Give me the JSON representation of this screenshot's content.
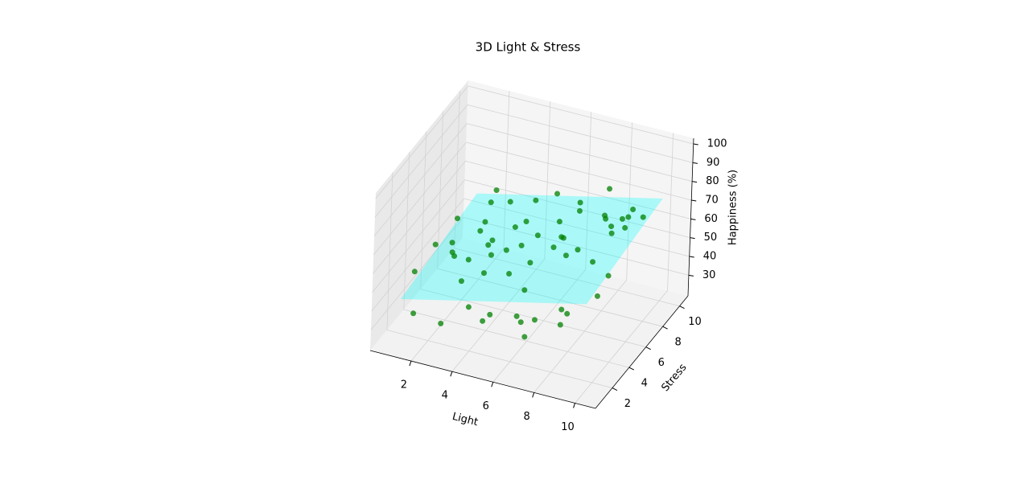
{
  "chart_data": {
    "type": "scatter3d",
    "title": "3D Light & Stress",
    "xlabel": "Light",
    "ylabel": "Stress",
    "zlabel": "Happiness (%)",
    "xlim": [
      0,
      11
    ],
    "ylim": [
      0,
      11
    ],
    "zlim": [
      19,
      103
    ],
    "xticks": [
      2,
      4,
      6,
      8,
      10
    ],
    "yticks": [
      2,
      4,
      6,
      8,
      10
    ],
    "zticks": [
      30,
      40,
      50,
      60,
      70,
      80,
      90,
      100
    ],
    "grid": true,
    "color": "green",
    "alpha": 0.75,
    "x": [
      1.2,
      2.5,
      3.1,
      4.8,
      5.5,
      6.2,
      7.9,
      8.4,
      9.6,
      1.8,
      2.9,
      3.7,
      4.1,
      5.9,
      6.8,
      7.3,
      8.8,
      9.9,
      1.5,
      2.2,
      3.4,
      4.6,
      5.2,
      6.5,
      7.6,
      8.1,
      9.3,
      1.1,
      2.7,
      3.9,
      4.4,
      5.7,
      6.9,
      7.1,
      8.6,
      9.5,
      1.9,
      2.4,
      3.2,
      4.9,
      5.3,
      6.1,
      7.8,
      8.3,
      9.8,
      1.4,
      2.1,
      3.6,
      4.2,
      5.8,
      6.6,
      7.4,
      8.9,
      9.2,
      1.7,
      3.0,
      5.0,
      6.0,
      8.0,
      9.0
    ],
    "y": [
      2.1,
      5.4,
      8.8,
      1.5,
      6.2,
      9.5,
      3.3,
      7.1,
      2.6,
      9.1,
      1.2,
      4.7,
      8.3,
      2.9,
      5.8,
      9.8,
      1.7,
      6.6,
      3.8,
      7.5,
      2.3,
      5.1,
      9.2,
      1.9,
      4.4,
      8.6,
      5.6,
      6.9,
      3.1,
      9.9,
      2.5,
      7.7,
      1.4,
      5.3,
      9.4,
      3.6,
      4.9,
      8.2,
      6.4,
      3.9,
      1.1,
      7.3,
      9.0,
      2.2,
      4.1,
      1.6,
      9.6,
      2.8,
      6.7,
      4.6,
      8.5,
      1.3,
      7.9,
      9.7,
      5.9,
      7.0,
      5.5,
      3.5,
      4.8,
      8.0
    ],
    "z": [
      53,
      45,
      59,
      40,
      62,
      59,
      45,
      74,
      79,
      43,
      35,
      60,
      54,
      38,
      67,
      58,
      54,
      86,
      59,
      48,
      53,
      45,
      67,
      42,
      67,
      61,
      77,
      42,
      60,
      56,
      59,
      48,
      38,
      70,
      63,
      55,
      50,
      60,
      44,
      65,
      47,
      65,
      78,
      44,
      64,
      34,
      58,
      37,
      60,
      57,
      70,
      49,
      71,
      63,
      62,
      48,
      59,
      49,
      69,
      66
    ],
    "surface": {
      "color": "cyan",
      "alpha": 0.3,
      "x": [
        1,
        10
      ],
      "y": [
        1,
        10
      ],
      "z": [
        [
          43.8,
          66.3
        ],
        [
          51,
          73.5
        ]
      ]
    }
  }
}
